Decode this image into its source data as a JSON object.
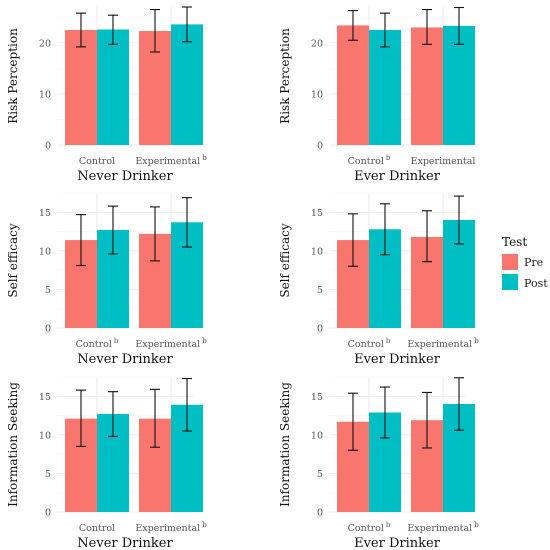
{
  "legend": {
    "title": "Test",
    "items": [
      {
        "label": "Pre",
        "color": "#F8766D"
      },
      {
        "label": "Post",
        "color": "#00BFC4"
      }
    ]
  },
  "chart_data": [
    {
      "type": "bar",
      "xlabel": "Never Drinker",
      "ylabel": "Risk Perception",
      "ylim": [
        0,
        27
      ],
      "yticks": [
        0,
        10,
        20
      ],
      "grid": true,
      "categories": [
        {
          "label": "Control",
          "sup": ""
        },
        {
          "label": "Experimental",
          "sup": "b"
        }
      ],
      "series": [
        {
          "name": "Pre",
          "values": [
            22.5,
            22.3
          ],
          "err_low": [
            19.2,
            18.2
          ],
          "err_high": [
            25.8,
            26.5
          ]
        },
        {
          "name": "Post",
          "values": [
            22.6,
            23.6
          ],
          "err_low": [
            19.7,
            20.2
          ],
          "err_high": [
            25.4,
            27.0
          ]
        }
      ]
    },
    {
      "type": "bar",
      "xlabel": "Ever Drinker",
      "ylabel": "Risk Perception",
      "ylim": [
        0,
        27
      ],
      "yticks": [
        0,
        10,
        20
      ],
      "grid": true,
      "categories": [
        {
          "label": "Control",
          "sup": "b"
        },
        {
          "label": "Experimental",
          "sup": ""
        }
      ],
      "series": [
        {
          "name": "Pre",
          "values": [
            23.4,
            23.0
          ],
          "err_low": [
            20.5,
            19.7
          ],
          "err_high": [
            26.3,
            26.5
          ]
        },
        {
          "name": "Post",
          "values": [
            22.5,
            23.3
          ],
          "err_low": [
            19.2,
            19.7
          ],
          "err_high": [
            25.8,
            26.9
          ]
        }
      ]
    },
    {
      "type": "bar",
      "xlabel": "Never Drinker",
      "ylabel": "Self efficacy",
      "ylim": [
        0,
        17.5
      ],
      "yticks": [
        0,
        5,
        10,
        15
      ],
      "grid": true,
      "categories": [
        {
          "label": "Control",
          "sup": "b"
        },
        {
          "label": "Experimental",
          "sup": "b"
        }
      ],
      "series": [
        {
          "name": "Pre",
          "values": [
            11.4,
            12.2
          ],
          "err_low": [
            8.1,
            8.7
          ],
          "err_high": [
            14.7,
            15.7
          ]
        },
        {
          "name": "Post",
          "values": [
            12.7,
            13.7
          ],
          "err_low": [
            9.6,
            10.5
          ],
          "err_high": [
            15.8,
            16.9
          ]
        }
      ]
    },
    {
      "type": "bar",
      "xlabel": "Ever Drinker",
      "ylabel": "Self efficacy",
      "ylim": [
        0,
        17.5
      ],
      "yticks": [
        0,
        5,
        10,
        15
      ],
      "grid": true,
      "categories": [
        {
          "label": "Control",
          "sup": "b"
        },
        {
          "label": "Experimental",
          "sup": "b"
        }
      ],
      "series": [
        {
          "name": "Pre",
          "values": [
            11.4,
            11.8
          ],
          "err_low": [
            8.0,
            8.6
          ],
          "err_high": [
            14.8,
            15.2
          ]
        },
        {
          "name": "Post",
          "values": [
            12.8,
            14.0
          ],
          "err_low": [
            9.5,
            10.9
          ],
          "err_high": [
            16.1,
            17.1
          ]
        }
      ]
    },
    {
      "type": "bar",
      "xlabel": "Never Drinker",
      "ylabel": "Information Seeking",
      "ylim": [
        0,
        17.5
      ],
      "yticks": [
        0,
        5,
        10,
        15
      ],
      "grid": true,
      "categories": [
        {
          "label": "Control",
          "sup": ""
        },
        {
          "label": "Experimental",
          "sup": "b"
        }
      ],
      "series": [
        {
          "name": "Pre",
          "values": [
            12.1,
            12.1
          ],
          "err_low": [
            8.5,
            8.4
          ],
          "err_high": [
            15.8,
            15.9
          ]
        },
        {
          "name": "Post",
          "values": [
            12.7,
            13.9
          ],
          "err_low": [
            9.8,
            10.5
          ],
          "err_high": [
            15.6,
            17.3
          ]
        }
      ]
    },
    {
      "type": "bar",
      "xlabel": "Ever Drinker",
      "ylabel": "Information Seeking",
      "ylim": [
        0,
        17.5
      ],
      "yticks": [
        0,
        5,
        10,
        15
      ],
      "grid": true,
      "categories": [
        {
          "label": "Control",
          "sup": "b"
        },
        {
          "label": "Experimental",
          "sup": "b"
        }
      ],
      "series": [
        {
          "name": "Pre",
          "values": [
            11.7,
            11.9
          ],
          "err_low": [
            8.0,
            8.3
          ],
          "err_high": [
            15.4,
            15.5
          ]
        },
        {
          "name": "Post",
          "values": [
            12.9,
            14.0
          ],
          "err_low": [
            9.6,
            10.6
          ],
          "err_high": [
            16.2,
            17.4
          ]
        }
      ]
    }
  ]
}
